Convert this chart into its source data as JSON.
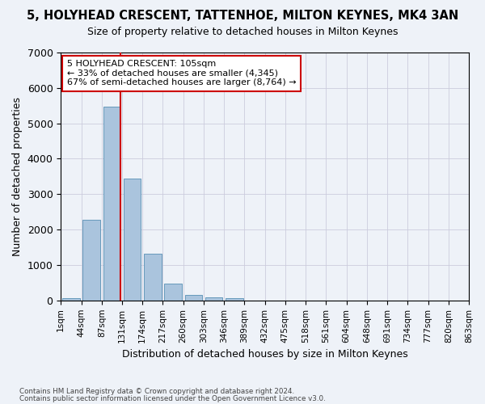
{
  "title": "5, HOLYHEAD CRESCENT, TATTENHOE, MILTON KEYNES, MK4 3AN",
  "subtitle": "Size of property relative to detached houses in Milton Keynes",
  "xlabel": "Distribution of detached houses by size in Milton Keynes",
  "ylabel": "Number of detached properties",
  "footnote1": "Contains HM Land Registry data © Crown copyright and database right 2024.",
  "footnote2": "Contains public sector information licensed under the Open Government Licence v3.0.",
  "bar_values": [
    75,
    2280,
    5480,
    3450,
    1320,
    470,
    160,
    90,
    55,
    0,
    0,
    0,
    0,
    0,
    0,
    0,
    0,
    0,
    0,
    0
  ],
  "bar_labels": [
    "1sqm",
    "44sqm",
    "87sqm",
    "131sqm",
    "174sqm",
    "217sqm",
    "260sqm",
    "303sqm",
    "346sqm",
    "389sqm",
    "432sqm",
    "475sqm",
    "518sqm",
    "561sqm",
    "604sqm",
    "648sqm",
    "691sqm",
    "734sqm",
    "777sqm",
    "820sqm",
    "863sqm"
  ],
  "bar_color": "#aac4dd",
  "bar_edge_color": "#6699bb",
  "grid_color": "#ccccdd",
  "background_color": "#eef2f8",
  "ylim": [
    0,
    7000
  ],
  "yticks": [
    0,
    1000,
    2000,
    3000,
    4000,
    5000,
    6000,
    7000
  ],
  "property_label": "5 HOLYHEAD CRESCENT: 105sqm",
  "annotation_line1": "← 33% of detached houses are smaller (4,345)",
  "annotation_line2": "67% of semi-detached houses are larger (8,764) →",
  "vline_color": "#cc0000",
  "annotation_box_facecolor": "#ffffff",
  "annotation_box_edgecolor": "#cc0000",
  "vline_x": 2.41
}
